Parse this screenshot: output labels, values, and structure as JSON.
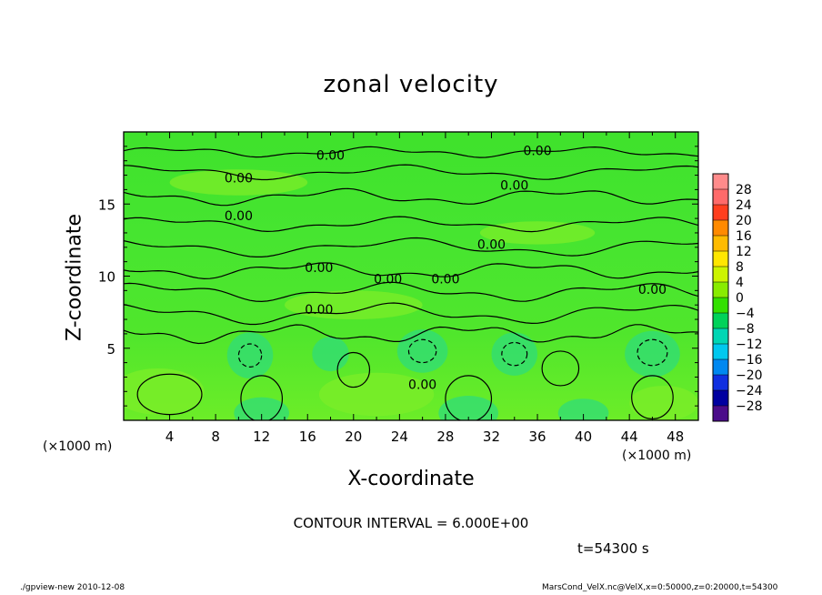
{
  "chart_data": {
    "type": "heatmap",
    "title": "zonal velocity",
    "xlabel": "X-coordinate",
    "ylabel": "Z-coordinate",
    "x_unit": "(×1000 m)",
    "y_unit": "(×1000 m)",
    "xlim": [
      0,
      50
    ],
    "ylim": [
      0,
      20
    ],
    "x_ticks": [
      4,
      8,
      12,
      16,
      20,
      24,
      28,
      32,
      36,
      40,
      44,
      48
    ],
    "y_ticks": [
      5,
      10,
      15
    ],
    "colorbar": {
      "labels": [
        28,
        24,
        20,
        16,
        12,
        8,
        4,
        0,
        -4,
        -8,
        -12,
        -16,
        -20,
        -24,
        -28
      ],
      "colors": [
        "#ff8b8b",
        "#ff6a6a",
        "#ff3e1e",
        "#ff8a00",
        "#ffbb00",
        "#ffe600",
        "#ccf400",
        "#88ec00",
        "#33e000",
        "#00d25a",
        "#00d6b4",
        "#00c8ee",
        "#0088f0",
        "#1030e0",
        "#0000a0",
        "#4b0c8a"
      ]
    },
    "contour_labels": [
      "0.00",
      "0.00",
      "0.00",
      "0.00",
      "0.00",
      "0.00",
      "0.00",
      "0.00",
      "0.00",
      "0.00",
      "0.00",
      "0.00"
    ],
    "contour_interval_text": "CONTOUR INTERVAL = 6.000E+00",
    "time_text": "t=54300 s",
    "footer_left": "./gpview-new  2010-12-08",
    "footer_right": "MarsCond_VelX.nc@VelX,x=0:50000,z=0:20000,t=54300",
    "colors": {
      "field": "#44e32a",
      "field_light": "#7cee28",
      "field_cool": "#2fdc7a",
      "frame": "#000000"
    }
  }
}
